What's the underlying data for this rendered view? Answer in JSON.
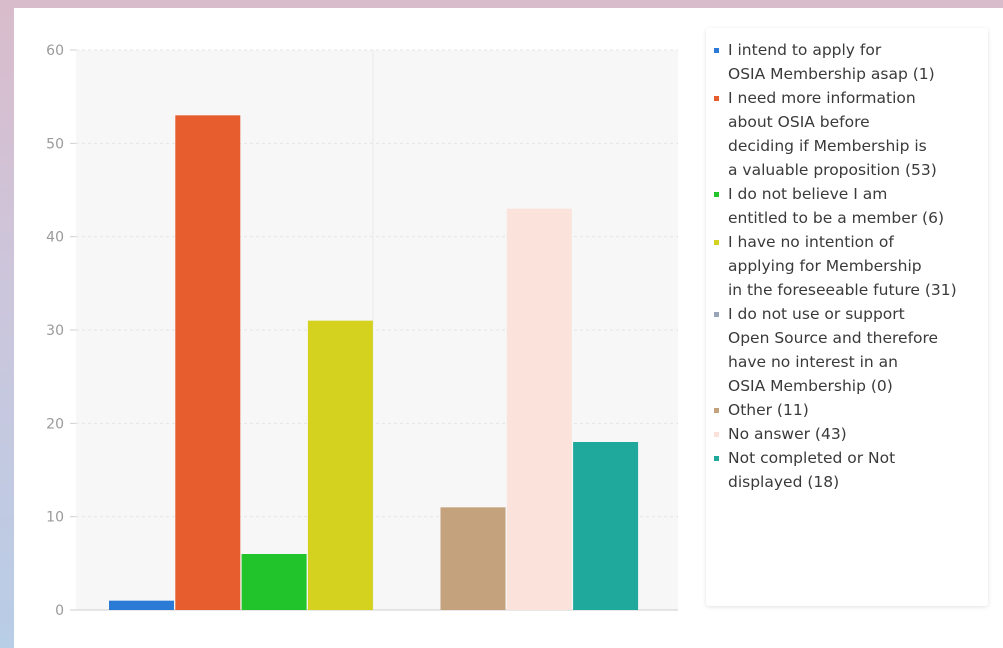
{
  "chart_data": {
    "type": "bar",
    "title": "",
    "xlabel": "",
    "ylabel": "",
    "ylim": [
      0,
      60
    ],
    "yticks": [
      0,
      10,
      20,
      30,
      40,
      50,
      60
    ],
    "grid": true,
    "legend_position": "right",
    "series": [
      {
        "name": "I intend to apply for\nOSIA Membership asap (1)",
        "value": 1,
        "color": "#2b7bd6"
      },
      {
        "name": "I need more information\nabout OSIA before\ndeciding if Membership is\na valuable proposition (53)",
        "value": 53,
        "color": "#e85d2e"
      },
      {
        "name": "I do not believe I am\nentitled to be a member (6)",
        "value": 6,
        "color": "#22c42b"
      },
      {
        "name": "I have no intention of\napplying for Membership\nin the foreseeable future (31)",
        "value": 31,
        "color": "#d4d21f"
      },
      {
        "name": "I do not use or support\nOpen Source and therefore\nhave no interest in an\nOSIA Membership (0)",
        "value": 0,
        "color": "#9aa6b8"
      },
      {
        "name": "Other (11)",
        "value": 11,
        "color": "#c4a27d"
      },
      {
        "name": "No answer (43)",
        "value": 43,
        "color": "#fbe3dc"
      },
      {
        "name": "Not completed or Not\ndisplayed (18)",
        "value": 18,
        "color": "#1fa89c"
      }
    ]
  }
}
